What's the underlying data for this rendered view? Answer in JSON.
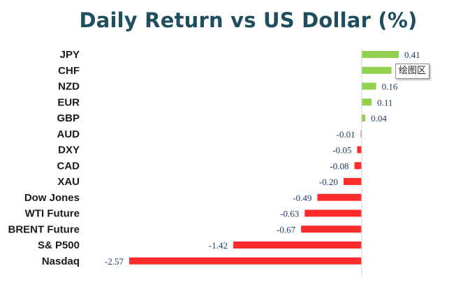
{
  "chart_data": {
    "type": "bar",
    "orientation": "horizontal",
    "title": "Daily Return vs US Dollar (%)",
    "categories": [
      "JPY",
      "CHF",
      "NZD",
      "EUR",
      "GBP",
      "AUD",
      "DXY",
      "CAD",
      "XAU",
      "Dow Jones",
      "WTI Future",
      "BRENT Future",
      "S& P500",
      "Nasdaq"
    ],
    "values": [
      0.41,
      0.33,
      0.16,
      0.11,
      0.04,
      -0.01,
      -0.05,
      -0.08,
      -0.2,
      -0.49,
      -0.63,
      -0.67,
      -1.42,
      -2.57
    ],
    "value_labels": [
      "0.41",
      "",
      "0.16",
      "0.11",
      "0.04",
      "-0.01",
      "-0.05",
      "-0.08",
      "-0.20",
      "-0.49",
      "-0.63",
      "-0.67",
      "-1.42",
      "-2.57"
    ],
    "xlim": [
      -2.57,
      0.41
    ],
    "colors": {
      "positive": "#92d050",
      "negative": "#ff2b2b",
      "axis": "#d9d9d9",
      "value_text": "#1f3a68",
      "title": "#1f4e5f"
    },
    "grid": false,
    "legend": "none"
  },
  "tooltip": {
    "text": "绘图区"
  }
}
